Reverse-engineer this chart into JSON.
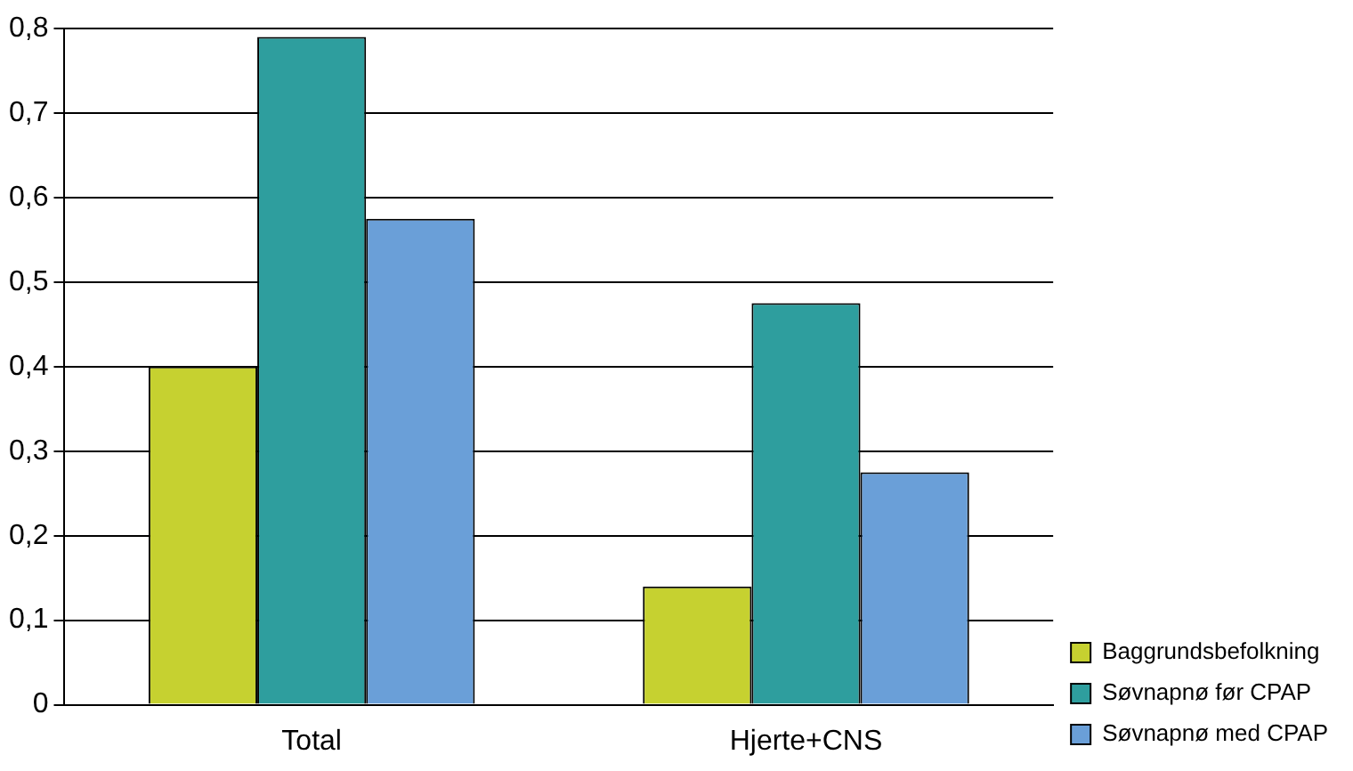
{
  "chart_data": {
    "type": "bar",
    "categories": [
      "Total",
      "Hjerte+CNS"
    ],
    "series": [
      {
        "name": "Baggrundsbefolkning",
        "color": "#c6d130",
        "values": [
          0.4,
          0.14
        ]
      },
      {
        "name": "Søvnapnø før CPAP",
        "color": "#2e9e9e",
        "values": [
          0.79,
          0.475
        ]
      },
      {
        "name": "Søvnapnø med CPAP",
        "color": "#6a9fd8",
        "values": [
          0.575,
          0.275
        ]
      }
    ],
    "ylim": [
      0,
      0.8
    ],
    "yticks": [
      {
        "value": 0,
        "label": "0"
      },
      {
        "value": 0.1,
        "label": "0,1"
      },
      {
        "value": 0.2,
        "label": "0,2"
      },
      {
        "value": 0.3,
        "label": "0,3"
      },
      {
        "value": 0.4,
        "label": "0,4"
      },
      {
        "value": 0.5,
        "label": "0,5"
      },
      {
        "value": 0.6,
        "label": "0,6"
      },
      {
        "value": 0.7,
        "label": "0,7"
      },
      {
        "value": 0.8,
        "label": "0,8"
      }
    ],
    "grid": "y",
    "legend": "bottom right"
  }
}
